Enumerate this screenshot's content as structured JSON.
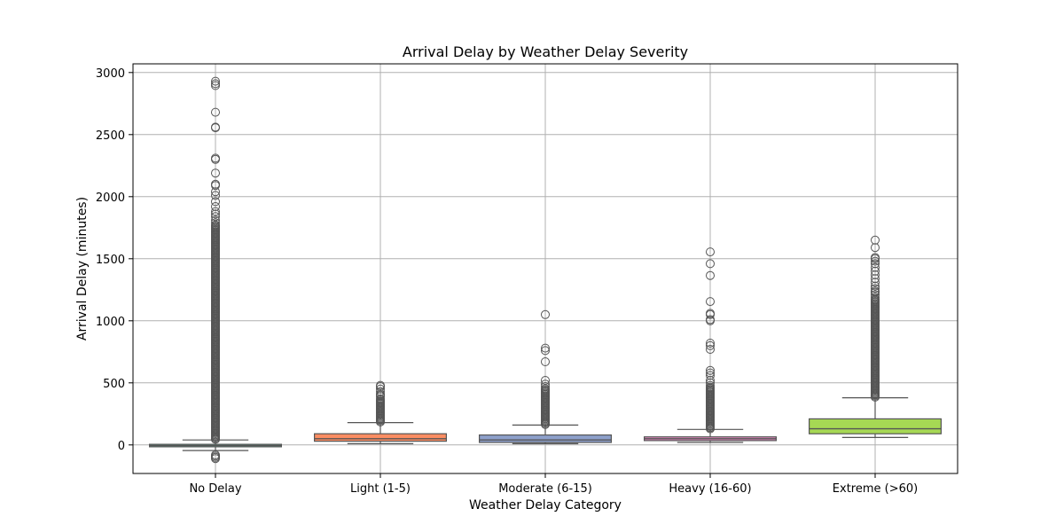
{
  "chart_data": {
    "type": "box",
    "title": "Arrival Delay by Weather Delay Severity",
    "xlabel": "Weather Delay Category",
    "ylabel": "Arrival Delay (minutes)",
    "ylim": [
      -230,
      3070
    ],
    "yticks": [
      0,
      500,
      1000,
      1500,
      2000,
      2500,
      3000
    ],
    "grid": true,
    "categories": [
      "No Delay",
      "Light (1-5)",
      "Moderate (6-15)",
      "Heavy (16-60)",
      "Extreme (>60)"
    ],
    "boxes": [
      {
        "category": "No Delay",
        "color": "#66c2a5",
        "whisker_low": -45,
        "q1": -15,
        "median": -5,
        "q3": 5,
        "whisker_high": 40,
        "outliers": [
          2930,
          2910,
          2895,
          2680,
          2560,
          2555,
          2310,
          2300,
          2190,
          2100,
          2090,
          2040,
          2010,
          1960,
          1920,
          1880,
          1860,
          1840,
          1810,
          1790,
          -80,
          -90,
          -100,
          -110
        ],
        "outlier_band": [
          45,
          1780
        ]
      },
      {
        "category": "Light (1-5)",
        "color": "#fc8d62",
        "whisker_low": 10,
        "q1": 30,
        "median": 50,
        "q3": 90,
        "whisker_high": 180,
        "outliers": [
          480,
          470,
          450,
          430,
          410,
          400,
          390
        ],
        "outlier_band": [
          185,
          380
        ]
      },
      {
        "category": "Moderate (6-15)",
        "color": "#8da0cb",
        "whisker_low": 10,
        "q1": 20,
        "median": 40,
        "q3": 80,
        "whisker_high": 160,
        "outliers": [
          1050,
          780,
          760,
          670,
          520,
          490,
          470
        ],
        "outlier_band": [
          165,
          460
        ]
      },
      {
        "category": "Heavy (16-60)",
        "color": "#e78ac3",
        "whisker_low": 20,
        "q1": 35,
        "median": 50,
        "q3": 65,
        "whisker_high": 125,
        "outliers": [
          1555,
          1460,
          1365,
          1155,
          1060,
          1050,
          1010,
          1000,
          820,
          800,
          770,
          600,
          580,
          560,
          520,
          500,
          480
        ],
        "outlier_band": [
          130,
          470
        ]
      },
      {
        "category": "Extreme (>60)",
        "color": "#a6d854",
        "whisker_low": 60,
        "q1": 90,
        "median": 130,
        "q3": 210,
        "whisker_high": 380,
        "outliers": [
          1650,
          1590,
          1510,
          1500,
          1480,
          1460,
          1430,
          1400,
          1370,
          1340,
          1310,
          1280,
          1260,
          1240,
          1230,
          1210,
          1190
        ],
        "outlier_band": [
          385,
          1180
        ]
      }
    ]
  }
}
